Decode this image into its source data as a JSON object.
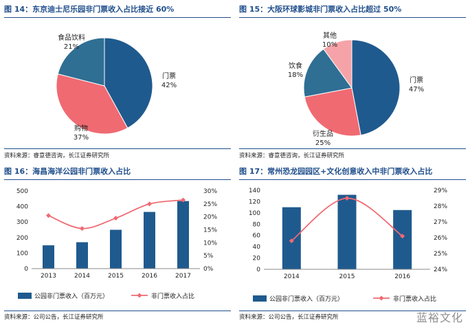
{
  "watermark": "蓝裕文化",
  "chart_data": [
    {
      "type": "pie",
      "figure_label": "图 14：东京迪士尼乐园非门票收入占比接近 60%",
      "source": "资料来源：睿意德咨询，长江证券研究所",
      "slices": [
        {
          "name": "门票",
          "value": 42,
          "label": "42%",
          "color": "#1f5a8e"
        },
        {
          "name": "购物",
          "value": 37,
          "label": "37%",
          "color": "#f06a72"
        },
        {
          "name": "食品饮料",
          "value": 21,
          "label": "21%",
          "color": "#2f6f93"
        }
      ]
    },
    {
      "type": "pie",
      "figure_label": "图 15：大阪环球影城非门票收入占比超过 50%",
      "source": "资料来源：睿意德咨询，长江证券研究所",
      "slices": [
        {
          "name": "门票",
          "value": 47,
          "label": "47%",
          "color": "#1f5a8e"
        },
        {
          "name": "衍生品",
          "value": 25,
          "label": "25%",
          "color": "#f06a72"
        },
        {
          "name": "饮食",
          "value": 18,
          "label": "18%",
          "color": "#2f6f93"
        },
        {
          "name": "其他",
          "value": 10,
          "label": "10%",
          "color": "#f5a3a8"
        }
      ]
    },
    {
      "type": "bar+line",
      "figure_label": "图 16：海昌海洋公园非门票收入占比",
      "source": "资料来源：公司公告，长江证券研究所",
      "categories": [
        "2013",
        "2014",
        "2015",
        "2016",
        "2017"
      ],
      "bar_series": {
        "name": "公园非门票收入（百万元）",
        "values": [
          150,
          170,
          250,
          365,
          435
        ],
        "color": "#1f5a8e"
      },
      "line_series": {
        "name": "非门票收入占比",
        "values": [
          20.5,
          15.5,
          19.5,
          25,
          26.5
        ],
        "color": "#f06a72"
      },
      "y_left": {
        "min": 0,
        "max": 500,
        "ticks": [
          "0",
          "100",
          "200",
          "300",
          "400",
          "500"
        ]
      },
      "y_right": {
        "min": 0,
        "max": 30,
        "ticks": [
          "0%",
          "5%",
          "10%",
          "15%",
          "20%",
          "25%",
          "30%"
        ]
      }
    },
    {
      "type": "bar+line",
      "figure_label": "图 17：常州恐龙园园区+文化创意收入中非门票收入占比",
      "source": "资料来源：公司公告，长江证券研究所",
      "categories": [
        "2014",
        "2015",
        "2016"
      ],
      "bar_series": {
        "name": "公园非门票收入（百万元）",
        "values": [
          110,
          132,
          105
        ],
        "color": "#1f5a8e"
      },
      "line_series": {
        "name": "非门票收入占比",
        "values": [
          25.8,
          28.5,
          26.1
        ],
        "color": "#f06a72"
      },
      "y_left": {
        "min": 0,
        "max": 140,
        "ticks": [
          "0",
          "20",
          "40",
          "60",
          "80",
          "100",
          "120",
          "140"
        ]
      },
      "y_right": {
        "min": 24,
        "max": 29,
        "ticks": [
          "24%",
          "25%",
          "26%",
          "27%",
          "28%",
          "29%"
        ]
      }
    }
  ]
}
